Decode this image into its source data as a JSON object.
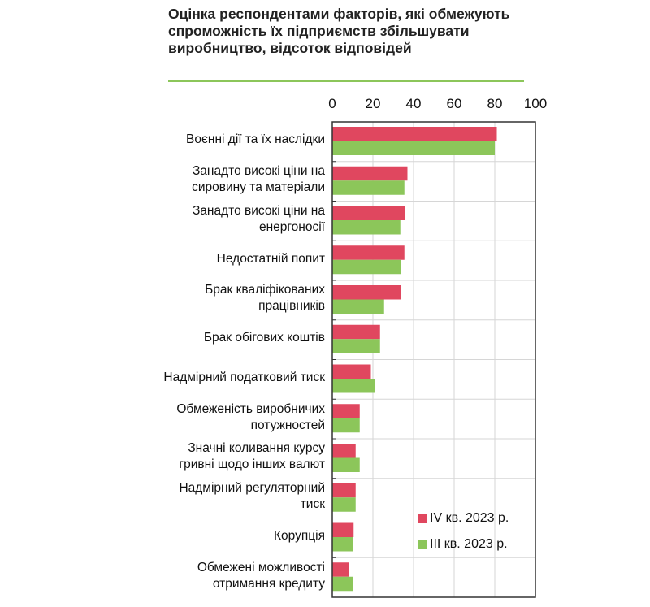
{
  "chart_data": {
    "type": "bar",
    "orientation": "horizontal",
    "title": "Оцінка респондентами факторів, які обмежують спроможність їх підприємств збільшувати виробництво, відсоток відповідей",
    "categories": [
      "Воєнні дії та їх наслідки",
      "Занадто високі ціни на сировину та матеріали",
      "Занадто високі ціни на енергоносії",
      "Недостатній попит",
      "Брак кваліфікованих працівників",
      "Брак обігових коштів",
      "Надмірний податковий тиск",
      "Обмеженість виробничих потужностей",
      "Значні коливання курсу гривні щодо інших валют",
      "Надмірний регуляторний тиск",
      "Корупція",
      "Обмежені можливості отримання кредиту"
    ],
    "category_lines": [
      [
        "Воєнні дії та їх наслідки"
      ],
      [
        "Занадто високі ціни на",
        "сировину та матеріали"
      ],
      [
        "Занадто високі ціни на",
        "енергоносії"
      ],
      [
        "Недостатній  попит"
      ],
      [
        "Брак кваліфікованих",
        "працівників"
      ],
      [
        "Брак обігових коштів"
      ],
      [
        "Надмірний податковий тиск"
      ],
      [
        "Обмеженість виробничих",
        "потужностей"
      ],
      [
        "Значні коливання курсу",
        "гривні щодо інших валют"
      ],
      [
        "Надмірний регуляторний",
        "тиск"
      ],
      [
        "Корупція"
      ],
      [
        "Обмежені можливості",
        "отримання кредиту"
      ]
    ],
    "series": [
      {
        "name": "IV кв. 2023 р.",
        "color": "#e0475f",
        "values": [
          81,
          37,
          36,
          35.5,
          34,
          23.5,
          19,
          13.5,
          11.5,
          11.5,
          10.5,
          8
        ]
      },
      {
        "name": "III кв. 2023 р.",
        "color": "#8cc65a",
        "values": [
          80,
          35.5,
          33.5,
          34,
          25.5,
          23.5,
          21,
          13.5,
          13.5,
          11.5,
          10,
          10
        ]
      }
    ],
    "xlim": [
      0,
      100
    ],
    "xticks": [
      "0",
      "20",
      "40",
      "60",
      "80",
      "100"
    ],
    "xtick_values": [
      0,
      20,
      40,
      60,
      80,
      100
    ],
    "grid": true,
    "legend_position": "bottom-right"
  }
}
